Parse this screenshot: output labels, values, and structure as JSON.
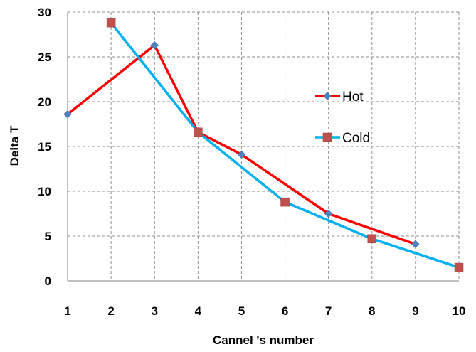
{
  "chart_data": {
    "type": "line",
    "xlabel": "Cannel 's number",
    "ylabel": "Delta T",
    "xlim": [
      1,
      10
    ],
    "ylim": [
      0,
      30
    ],
    "x_ticks": [
      1,
      2,
      3,
      4,
      5,
      6,
      7,
      8,
      9,
      10
    ],
    "y_ticks": [
      0,
      5,
      10,
      15,
      20,
      25,
      30
    ],
    "grid": true,
    "legend_position": "right",
    "series": [
      {
        "name": "Hot",
        "color": "#ff0000",
        "marker": "diamond",
        "marker_color": "#4f81bd",
        "x": [
          1,
          3,
          4,
          5,
          7,
          9
        ],
        "y": [
          18.6,
          26.3,
          16.6,
          14.1,
          7.5,
          4.1
        ]
      },
      {
        "name": "Cold",
        "color": "#00b0f0",
        "marker": "square",
        "marker_color": "#c0504d",
        "x": [
          2,
          4,
          6,
          8,
          10
        ],
        "y": [
          28.8,
          16.6,
          8.8,
          4.7,
          1.5
        ]
      }
    ]
  }
}
